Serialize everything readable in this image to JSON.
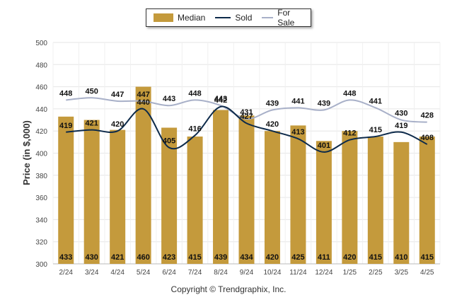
{
  "legend": {
    "median": "Median",
    "sold": "Sold",
    "for_sale": "For Sale"
  },
  "colors": {
    "median": "#c49a3c",
    "sold": "#0d2a4a",
    "for_sale": "#a8b0c8",
    "grid": "#e6e6e6"
  },
  "copyright": "Copyright © Trendgraphix, Inc.",
  "chart_data": {
    "type": "bar",
    "title": "",
    "xlabel": "",
    "ylabel": "Price (in $,000)",
    "ylim": [
      300,
      500
    ],
    "yticks": [
      300,
      320,
      340,
      360,
      380,
      400,
      420,
      440,
      460,
      480,
      500
    ],
    "grid": true,
    "legend_position": "top-center",
    "categories": [
      "2/24",
      "3/24",
      "4/24",
      "5/24",
      "6/24",
      "7/24",
      "8/24",
      "9/24",
      "10/24",
      "11/24",
      "12/24",
      "1/25",
      "2/25",
      "3/25",
      "4/25"
    ],
    "series": [
      {
        "name": "Median",
        "kind": "bar",
        "values": [
          433,
          430,
          421,
          460,
          423,
          415,
          439,
          434,
          420,
          425,
          411,
          420,
          415,
          410,
          415
        ]
      },
      {
        "name": "Sold",
        "kind": "line",
        "values": [
          419,
          421,
          420,
          440,
          405,
          416,
          442,
          427,
          420,
          413,
          401,
          412,
          415,
          419,
          408
        ]
      },
      {
        "name": "For Sale",
        "kind": "line",
        "values": [
          448,
          450,
          447,
          447,
          443,
          448,
          443,
          431,
          439,
          441,
          439,
          448,
          441,
          430,
          428
        ]
      }
    ]
  }
}
